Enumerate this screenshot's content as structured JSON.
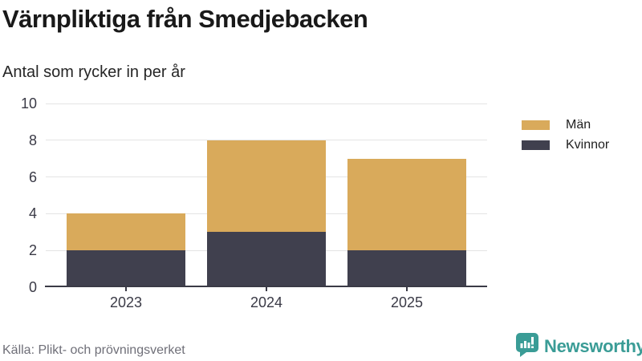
{
  "header": {
    "title": "Värnpliktiga från Smedjebacken",
    "subtitle": "Antal som rycker in per år"
  },
  "chart_data": {
    "type": "bar",
    "stacked": true,
    "categories": [
      "2023",
      "2024",
      "2025"
    ],
    "series": [
      {
        "name": "Kvinnor",
        "color": "#40404e",
        "values": [
          2,
          3,
          2
        ]
      },
      {
        "name": "Män",
        "color": "#d9aa5b",
        "values": [
          2,
          5,
          5
        ]
      }
    ],
    "totals": [
      4,
      8,
      7
    ],
    "title": "Värnpliktiga från Smedjebacken",
    "subtitle": "Antal som rycker in per år",
    "xlabel": "",
    "ylabel": "",
    "ylim": [
      0,
      10
    ],
    "yticks": [
      0,
      2,
      4,
      6,
      8,
      10
    ],
    "grid": "horizontal",
    "legend_position": "right"
  },
  "legend": {
    "items": [
      {
        "label": "Män",
        "color": "#d9aa5b"
      },
      {
        "label": "Kvinnor",
        "color": "#40404e"
      }
    ]
  },
  "footer": {
    "source": "Källa: Plikt- och prövningsverket",
    "brand": "Newsworthy"
  },
  "colors": {
    "men": "#d9aa5b",
    "women": "#40404e",
    "axis": "#3a3a46",
    "grid": "#e4e4e4",
    "brand_teal": "#3a9c96"
  },
  "icons": {
    "brand_icon": "newsworthy-speech-bubble-chart-icon"
  }
}
